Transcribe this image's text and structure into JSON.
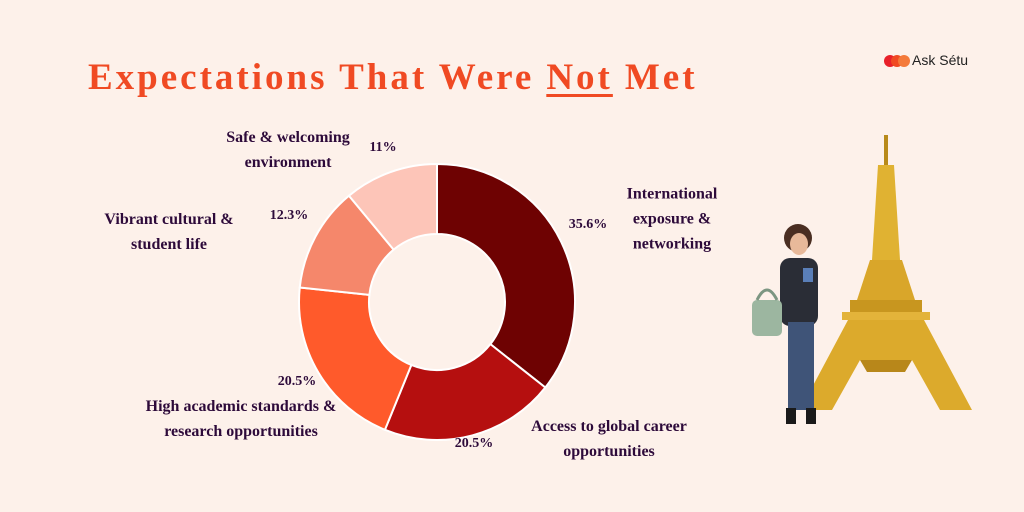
{
  "brand": "Ask Sétu",
  "chart_data": {
    "type": "pie",
    "title_parts": [
      "Expectations That Were",
      "Not",
      "Met"
    ],
    "categories": [
      "International exposure & networking",
      "Access to global career opportunities",
      "High academic standards & research opportunities",
      "Vibrant cultural & student life",
      "Safe & welcoming environment"
    ],
    "values": [
      35.6,
      20.5,
      20.5,
      12.3,
      11
    ],
    "value_labels": [
      "35.6%",
      "20.5%",
      "20.5%",
      "12.3%",
      "11%"
    ],
    "colors": [
      "#6e0202",
      "#b50f0f",
      "#ff5a2b",
      "#f5876b",
      "#fdc5b8"
    ],
    "donut": true
  }
}
